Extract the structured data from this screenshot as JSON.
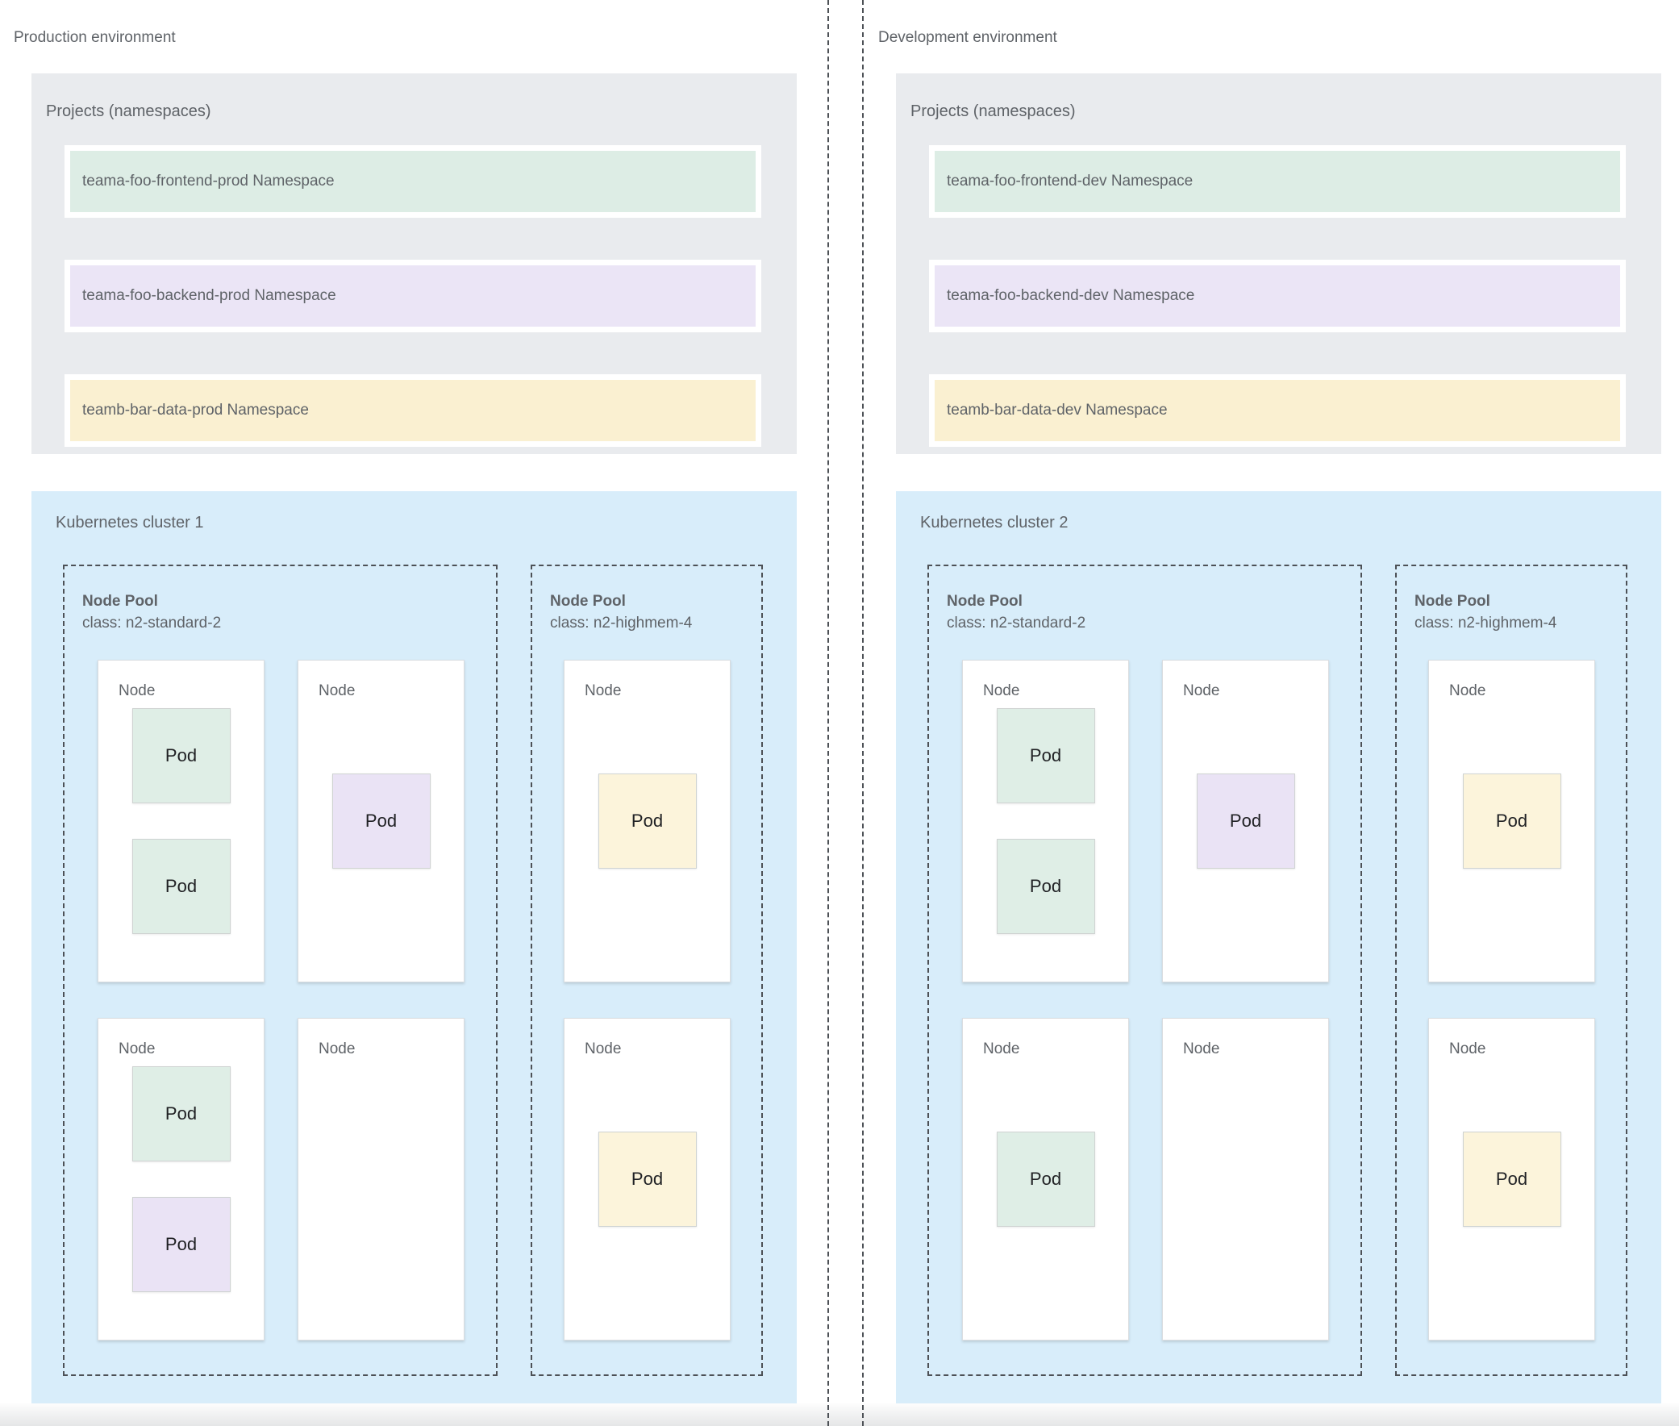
{
  "colors": {
    "box_gray": "#E9EBEE",
    "box_blue": "#D8EDFA",
    "ns_green": "#DDEDE5",
    "ns_purple": "#EBE5F6",
    "ns_yellow": "#FAF0D1",
    "pod_green": "#DFEEE6",
    "pod_purple": "#EAE3F5",
    "pod_yellow": "#FCF4DB",
    "label_gray": "#5F6368",
    "dash_border": "#4D5156"
  },
  "columns": [
    {
      "env_label": "Production environment",
      "projects_title": "Projects (namespaces)",
      "namespaces": [
        {
          "label": "teama-foo-frontend-prod Namespace",
          "fill": "ns-green"
        },
        {
          "label": "teama-foo-backend-prod Namespace",
          "fill": "ns-purple"
        },
        {
          "label": "teamb-bar-data-prod Namespace",
          "fill": "ns-yellow"
        }
      ],
      "cluster": {
        "title": "Kubernetes cluster 1",
        "pools": [
          {
            "title": "Node Pool",
            "class_line": "class: n2-standard-2",
            "nodes": [
              {
                "label": "Node",
                "pods": [
                  {
                    "label": "Pod",
                    "fill": "green"
                  },
                  {
                    "label": "Pod",
                    "fill": "green"
                  }
                ]
              },
              {
                "label": "Node",
                "pods": [
                  {
                    "label": "Pod",
                    "fill": "purple"
                  }
                ]
              },
              {
                "label": "Node",
                "pods": [
                  {
                    "label": "Pod",
                    "fill": "green"
                  },
                  {
                    "label": "Pod",
                    "fill": "purple"
                  }
                ]
              },
              {
                "label": "Node",
                "pods": []
              }
            ]
          },
          {
            "title": "Node Pool",
            "class_line": "class: n2-highmem-4",
            "nodes": [
              {
                "label": "Node",
                "pods": [
                  {
                    "label": "Pod",
                    "fill": "yellow"
                  }
                ]
              },
              {
                "label": "Node",
                "pods": [
                  {
                    "label": "Pod",
                    "fill": "yellow"
                  }
                ]
              }
            ]
          }
        ]
      }
    },
    {
      "env_label": "Development environment",
      "projects_title": "Projects (namespaces)",
      "namespaces": [
        {
          "label": "teama-foo-frontend-dev Namespace",
          "fill": "ns-green"
        },
        {
          "label": "teama-foo-backend-dev Namespace",
          "fill": "ns-purple"
        },
        {
          "label": "teamb-bar-data-dev Namespace",
          "fill": "ns-yellow"
        }
      ],
      "cluster": {
        "title": "Kubernetes cluster 2",
        "pools": [
          {
            "title": "Node Pool",
            "class_line": "class: n2-standard-2",
            "nodes": [
              {
                "label": "Node",
                "pods": [
                  {
                    "label": "Pod",
                    "fill": "green"
                  },
                  {
                    "label": "Pod",
                    "fill": "green"
                  }
                ]
              },
              {
                "label": "Node",
                "pods": [
                  {
                    "label": "Pod",
                    "fill": "purple"
                  }
                ]
              },
              {
                "label": "Node",
                "pods": [
                  {
                    "label": "Pod",
                    "fill": "green"
                  }
                ]
              },
              {
                "label": "Node",
                "pods": []
              }
            ]
          },
          {
            "title": "Node Pool",
            "class_line": "class: n2-highmem-4",
            "nodes": [
              {
                "label": "Node",
                "pods": [
                  {
                    "label": "Pod",
                    "fill": "yellow"
                  }
                ]
              },
              {
                "label": "Node",
                "pods": [
                  {
                    "label": "Pod",
                    "fill": "yellow"
                  }
                ]
              }
            ]
          }
        ]
      }
    }
  ]
}
